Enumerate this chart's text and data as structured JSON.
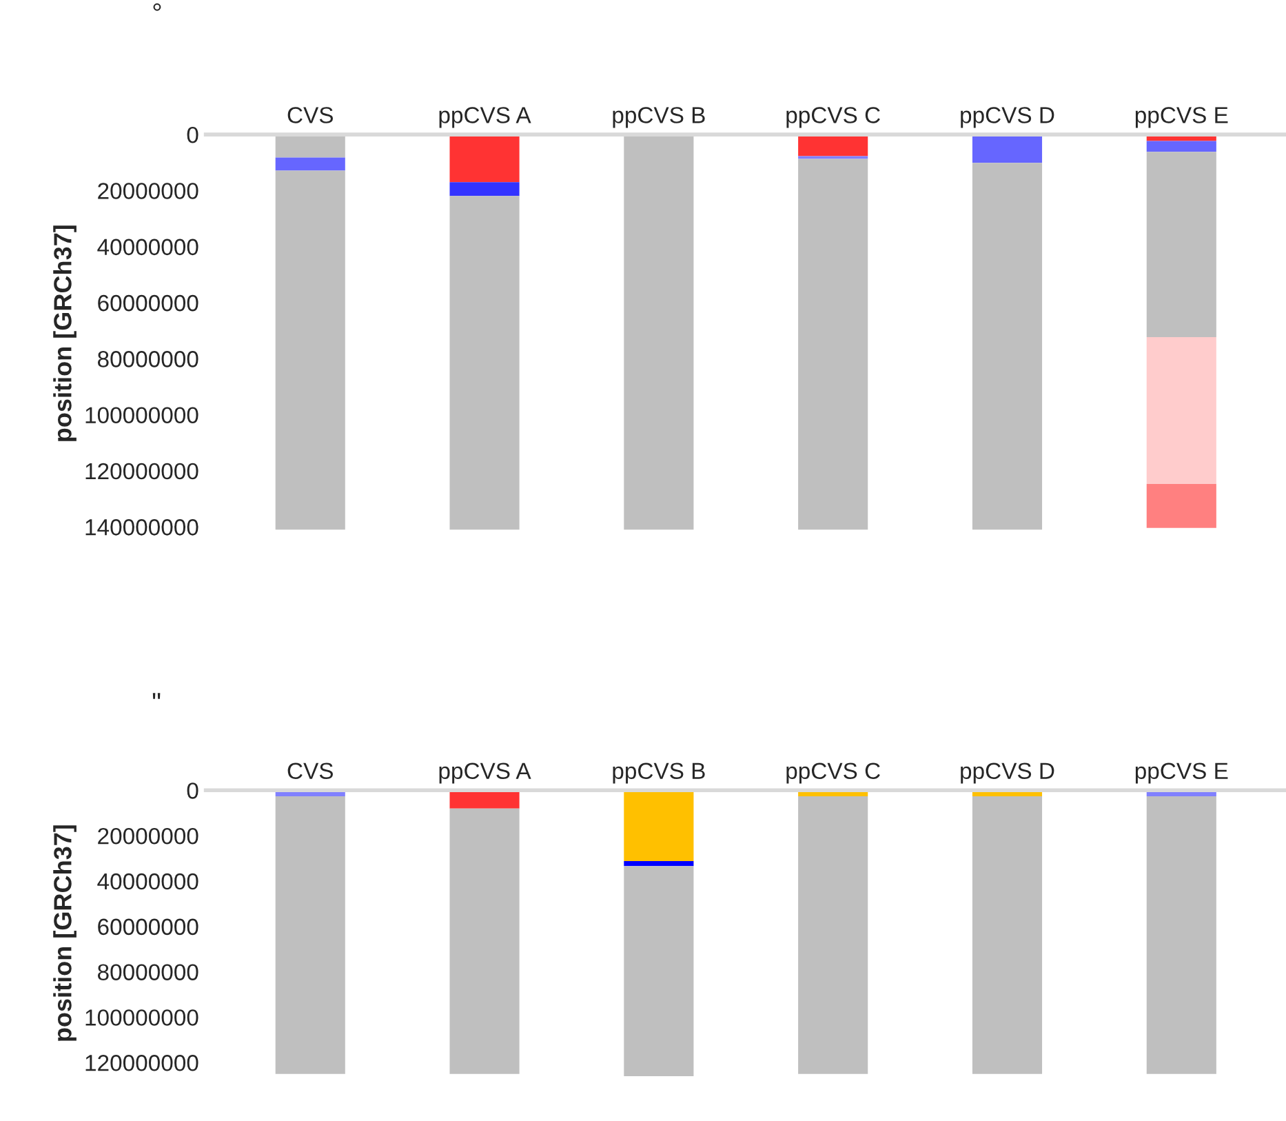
{
  "chart_data": [
    {
      "type": "bar",
      "stacked": true,
      "ylabel": "position [GRCh37]",
      "annotations": [
        "°"
      ],
      "categories": [
        "CVS",
        "ppCVS A",
        "ppCVS B",
        "ppCVS C",
        "ppCVS D",
        "ppCVS E"
      ],
      "series": [
        {
          "colors": [
            "#bfbfbf",
            "#ff3333",
            "#bfbfbf",
            "#ff3333",
            "#6666ff",
            "#ff3333"
          ],
          "values": [
            8200000,
            17000000,
            141000000,
            7700000,
            10100000,
            2300000
          ]
        },
        {
          "colors": [
            "#6666ff",
            "#3333ff",
            null,
            "#8080ff",
            "#bfbfbf",
            "#6666ff"
          ],
          "values": [
            4700000,
            4900000,
            null,
            1000000,
            130900000,
            3900000
          ]
        },
        {
          "colors": [
            "#bfbfbf",
            "#bfbfbf",
            null,
            "#bfbfbf",
            null,
            "#bfbfbf"
          ],
          "values": [
            128100000,
            119100000,
            null,
            132300000,
            null,
            66100000
          ]
        },
        {
          "colors": [
            null,
            null,
            null,
            null,
            null,
            "#ffcccc"
          ],
          "values": [
            null,
            null,
            null,
            null,
            null,
            52400000
          ]
        },
        {
          "colors": [
            null,
            null,
            null,
            null,
            null,
            "#ff8080"
          ],
          "values": [
            null,
            null,
            null,
            null,
            null,
            15700000
          ]
        }
      ],
      "ylim": [
        142000000,
        0
      ],
      "yticks": [
        0,
        20000000,
        40000000,
        60000000,
        80000000,
        100000000,
        120000000,
        140000000
      ],
      "grid": false,
      "legend": false
    },
    {
      "type": "bar",
      "stacked": true,
      "ylabel": "position [GRCh37]",
      "annotations": [
        "\""
      ],
      "categories": [
        "CVS",
        "ppCVS A",
        "ppCVS B",
        "ppCVS C",
        "ppCVS D",
        "ppCVS E"
      ],
      "series": [
        {
          "colors": [
            "#8080ff",
            "#ff3333",
            "#ffc000",
            "#ffc000",
            "#ffc000",
            "#8080ff"
          ],
          "values": [
            2600000,
            8000000,
            31200000,
            2600000,
            2600000,
            2600000
          ]
        },
        {
          "colors": [
            "#bfbfbf",
            "#bfbfbf",
            "#0000ff",
            "#bfbfbf",
            "#bfbfbf",
            "#bfbfbf"
          ],
          "values": [
            122400000,
            117000000,
            2200000,
            122400000,
            122400000,
            122400000
          ]
        },
        {
          "colors": [
            null,
            null,
            "#bfbfbf",
            null,
            null,
            null
          ],
          "values": [
            null,
            null,
            92600000,
            null,
            null,
            null
          ]
        }
      ],
      "ylim": [
        126000000,
        0
      ],
      "yticks": [
        0,
        20000000,
        40000000,
        60000000,
        80000000,
        100000000,
        120000000
      ],
      "grid": false,
      "legend": false
    }
  ]
}
